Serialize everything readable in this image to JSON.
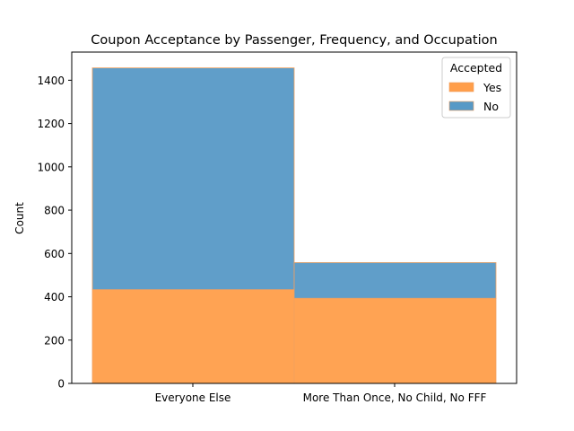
{
  "chart_data": {
    "type": "bar",
    "stacked": true,
    "title": "Coupon Acceptance by Passenger, Frequency, and Occupation",
    "xlabel": "",
    "ylabel": "Count",
    "categories": [
      "Everyone Else",
      "More Than Once, No Child, No FFF"
    ],
    "series": [
      {
        "name": "Yes",
        "values": [
          433,
          393
        ],
        "color": "#ff9e4a"
      },
      {
        "name": "No",
        "values": [
          1024,
          165
        ],
        "color": "#5799c6"
      }
    ],
    "ylim": [
      0,
      1530
    ],
    "yticks": [
      0,
      200,
      400,
      600,
      800,
      1000,
      1200,
      1400
    ],
    "grid": false,
    "legend": {
      "title": "Accepted",
      "placement": "top-right"
    }
  }
}
